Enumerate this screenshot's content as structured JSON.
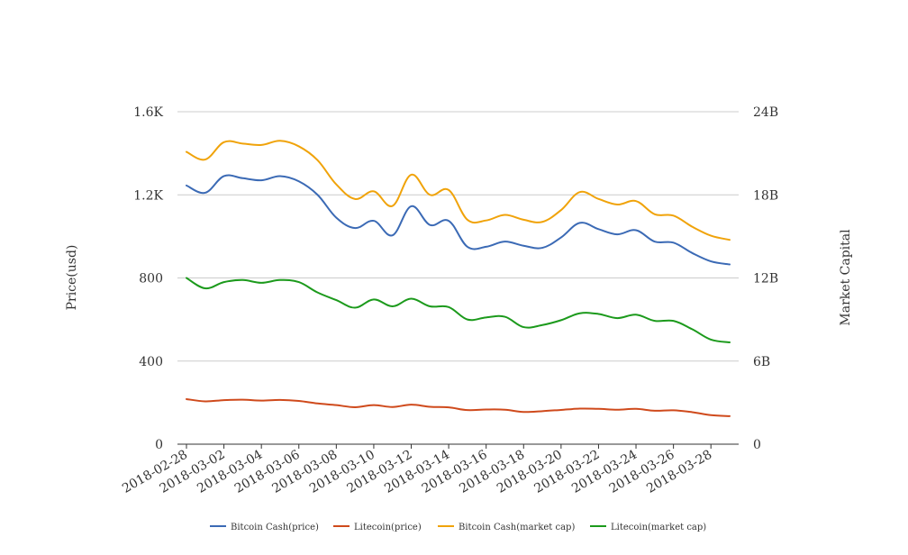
{
  "chart_data": {
    "type": "line",
    "ylabel_left": "Price(usd)",
    "ylabel_right": "Market Capital",
    "y_left": {
      "range": [
        0,
        1600
      ],
      "ticks": [
        0,
        400,
        800,
        1200,
        1600
      ],
      "tick_labels": [
        "0",
        "400",
        "800",
        "1.2K",
        "1.6K"
      ]
    },
    "y_right": {
      "range": [
        0,
        24000000000
      ],
      "ticks": [
        0,
        6000000000,
        12000000000,
        18000000000,
        24000000000
      ],
      "tick_labels": [
        "0",
        "6B",
        "12B",
        "18B",
        "24B"
      ]
    },
    "x_tick_labels": [
      "2018-02-28",
      "2018-03-02",
      "2018-03-04",
      "2018-03-06",
      "2018-03-08",
      "2018-03-10",
      "2018-03-12",
      "2018-03-14",
      "2018-03-16",
      "2018-03-18",
      "2018-03-20",
      "2018-03-22",
      "2018-03-24",
      "2018-03-26",
      "2018-03-28"
    ],
    "x": [
      "2018-02-28",
      "2018-03-01",
      "2018-03-02",
      "2018-03-03",
      "2018-03-04",
      "2018-03-05",
      "2018-03-06",
      "2018-03-07",
      "2018-03-08",
      "2018-03-09",
      "2018-03-10",
      "2018-03-11",
      "2018-03-12",
      "2018-03-13",
      "2018-03-14",
      "2018-03-15",
      "2018-03-16",
      "2018-03-17",
      "2018-03-18",
      "2018-03-19",
      "2018-03-20",
      "2018-03-21",
      "2018-03-22",
      "2018-03-23",
      "2018-03-24",
      "2018-03-25",
      "2018-03-26",
      "2018-03-27",
      "2018-03-28",
      "2018-03-29"
    ],
    "grid": true,
    "legend_position": "bottom",
    "series": [
      {
        "name": "Bitcoin Cash(price)",
        "axis": "left",
        "color": "#3b6ab5",
        "values": [
          1245,
          1210,
          1290,
          1280,
          1270,
          1290,
          1265,
          1200,
          1090,
          1040,
          1075,
          1005,
          1145,
          1055,
          1075,
          950,
          950,
          975,
          955,
          945,
          995,
          1065,
          1035,
          1010,
          1030,
          975,
          970,
          920,
          880,
          865
        ]
      },
      {
        "name": "Litecoin(price)",
        "axis": "left",
        "color": "#cf4a1c",
        "values": [
          217,
          206,
          212,
          214,
          210,
          213,
          208,
          196,
          188,
          178,
          188,
          179,
          190,
          180,
          177,
          164,
          167,
          166,
          155,
          159,
          165,
          171,
          170,
          166,
          170,
          161,
          163,
          154,
          140,
          135
        ]
      },
      {
        "name": "Bitcoin Cash(market cap)",
        "axis": "right",
        "color": "#f0a30a",
        "values": [
          21100000000,
          20550000000,
          21800000000,
          21700000000,
          21600000000,
          21900000000,
          21500000000,
          20500000000,
          18750000000,
          17700000000,
          18250000000,
          17200000000,
          19450000000,
          18000000000,
          18350000000,
          16200000000,
          16150000000,
          16550000000,
          16200000000,
          16050000000,
          16900000000,
          18200000000,
          17700000000,
          17300000000,
          17550000000,
          16600000000,
          16500000000,
          15700000000,
          15050000000,
          14750000000
        ]
      },
      {
        "name": "Litecoin(market cap)",
        "axis": "right",
        "color": "#1c9a1c",
        "values": [
          12000000000,
          11250000000,
          11700000000,
          11850000000,
          11650000000,
          11850000000,
          11700000000,
          10950000000,
          10400000000,
          9850000000,
          10450000000,
          9950000000,
          10500000000,
          9950000000,
          9900000000,
          9000000000,
          9150000000,
          9200000000,
          8450000000,
          8600000000,
          8950000000,
          9450000000,
          9400000000,
          9100000000,
          9350000000,
          8900000000,
          8900000000,
          8300000000,
          7550000000,
          7350000000
        ]
      }
    ]
  }
}
